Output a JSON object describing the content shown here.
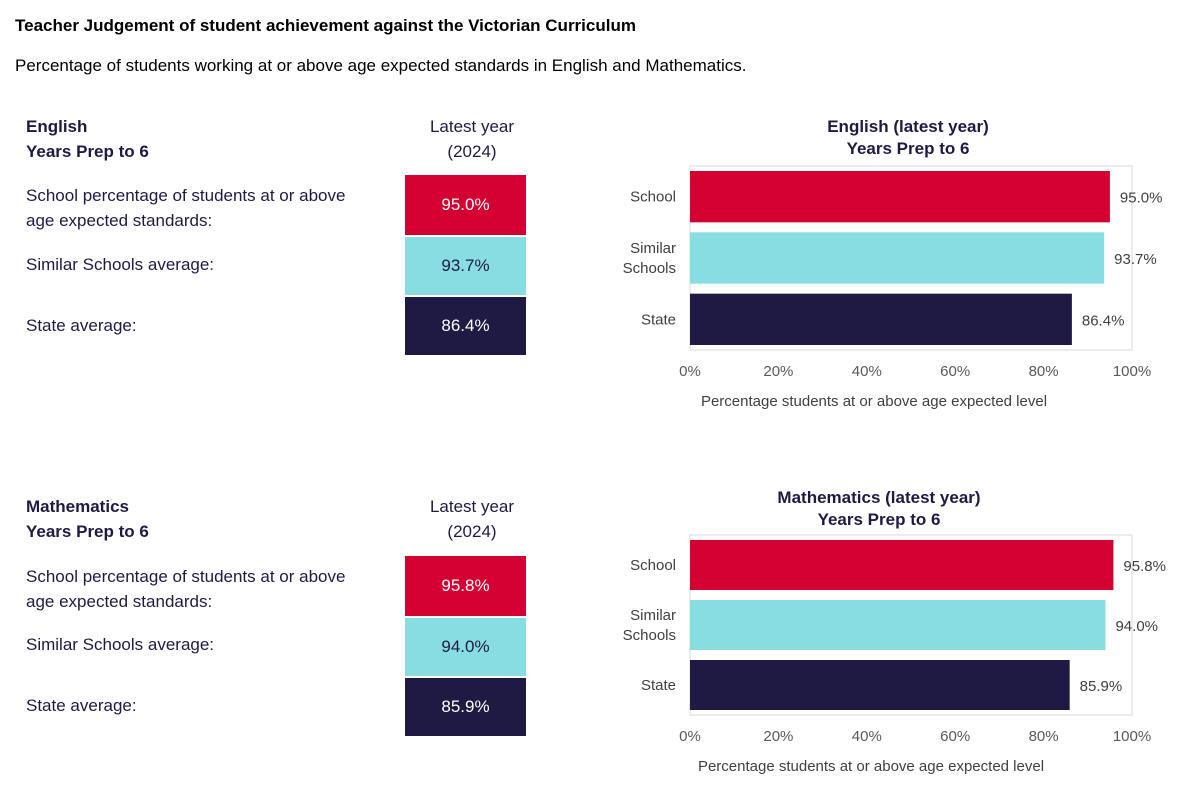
{
  "title": "Teacher Judgement of student achievement against the Victorian Curriculum",
  "subtitle": "Percentage of students working at or above age expected standards in English and Mathematics.",
  "colors": {
    "school": "#d50032",
    "similar": "#87dde1",
    "state": "#1f1a44",
    "text": "#1f1a44"
  },
  "english": {
    "heading": [
      "English",
      "Years Prep to 6"
    ],
    "column_header": [
      "Latest year",
      "(2024)"
    ],
    "rows": [
      {
        "label": [
          "School percentage of students at or above",
          "age expected standards:"
        ],
        "value": "95.0%"
      },
      {
        "label": [
          "Similar Schools average:"
        ],
        "value": "93.7%"
      },
      {
        "label": [
          "State average:"
        ],
        "value": "86.4%"
      }
    ]
  },
  "mathematics": {
    "heading": [
      "Mathematics",
      "Years Prep to 6"
    ],
    "column_header": [
      "Latest year",
      "(2024)"
    ],
    "rows": [
      {
        "label": [
          "School percentage of students at or above",
          "age expected standards:"
        ],
        "value": "95.8%"
      },
      {
        "label": [
          "Similar Schools average:"
        ],
        "value": "94.0%"
      },
      {
        "label": [
          "State average:"
        ],
        "value": "85.9%"
      }
    ]
  },
  "chart_data": [
    {
      "type": "bar",
      "orientation": "horizontal",
      "title": [
        "English (latest year)",
        "Years Prep to 6"
      ],
      "categories": [
        [
          "School"
        ],
        [
          "Similar",
          "Schools"
        ],
        [
          "State"
        ]
      ],
      "values": [
        95.0,
        93.7,
        86.4
      ],
      "value_labels": [
        "95.0%",
        "93.7%",
        "86.4%"
      ],
      "xlim": [
        0,
        100
      ],
      "xticks": [
        "0%",
        "20%",
        "40%",
        "60%",
        "80%",
        "100%"
      ],
      "xlabel": "Percentage students at or above age expected level",
      "grid": false
    },
    {
      "type": "bar",
      "orientation": "horizontal",
      "title": [
        "Mathematics (latest year)",
        "Years Prep to 6"
      ],
      "categories": [
        [
          "School"
        ],
        [
          "Similar",
          "Schools"
        ],
        [
          "State"
        ]
      ],
      "values": [
        95.8,
        94.0,
        85.9
      ],
      "value_labels": [
        "95.8%",
        "94.0%",
        "85.9%"
      ],
      "xlim": [
        0,
        100
      ],
      "xticks": [
        "0%",
        "20%",
        "40%",
        "60%",
        "80%",
        "100%"
      ],
      "xlabel": "Percentage students at or above age expected level",
      "grid": false
    }
  ]
}
